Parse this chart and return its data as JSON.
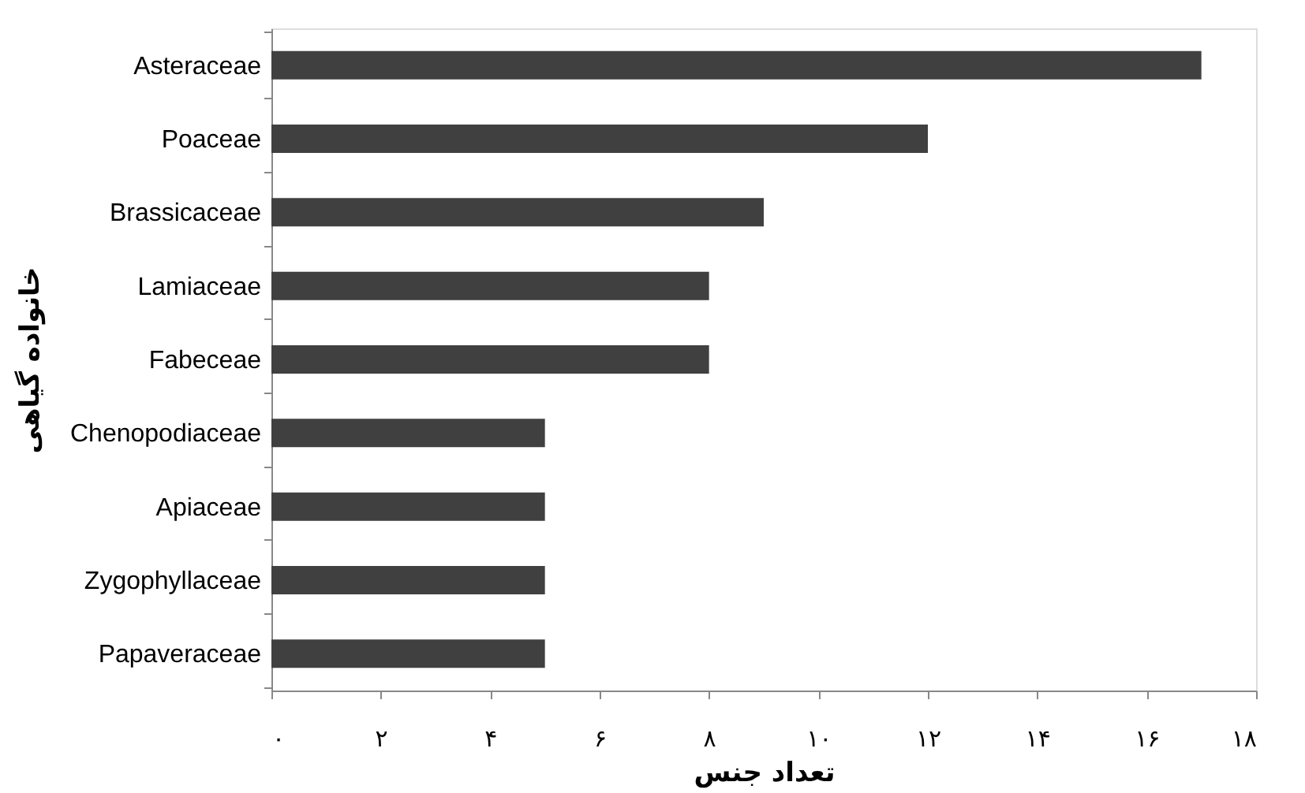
{
  "chart_data": {
    "type": "bar",
    "orientation": "horizontal",
    "xlabel": "تعداد جنس",
    "ylabel": "خانواده گیاهی",
    "categories": [
      "Asteraceae",
      "Poaceae",
      "Brassicaceae",
      "Lamiaceae",
      "Fabeceae",
      "Chenopodiaceae",
      "Apiaceae",
      "Zygophyllaceae",
      "Papaveraceae"
    ],
    "values": [
      17,
      12,
      9,
      8,
      8,
      5,
      5,
      5,
      5
    ],
    "color": "#404040",
    "xlim": [
      0,
      18
    ],
    "xticks": [
      {
        "value": 0,
        "label": "۰"
      },
      {
        "value": 2,
        "label": "۲"
      },
      {
        "value": 4,
        "label": "۴"
      },
      {
        "value": 6,
        "label": "۶"
      },
      {
        "value": 8,
        "label": "۸"
      },
      {
        "value": 10,
        "label": "۱۰"
      },
      {
        "value": 12,
        "label": "۱۲"
      },
      {
        "value": 14,
        "label": "۱۴"
      },
      {
        "value": 16,
        "label": "۱۶"
      },
      {
        "value": 18,
        "label": "۱۸"
      }
    ],
    "grid": false
  }
}
